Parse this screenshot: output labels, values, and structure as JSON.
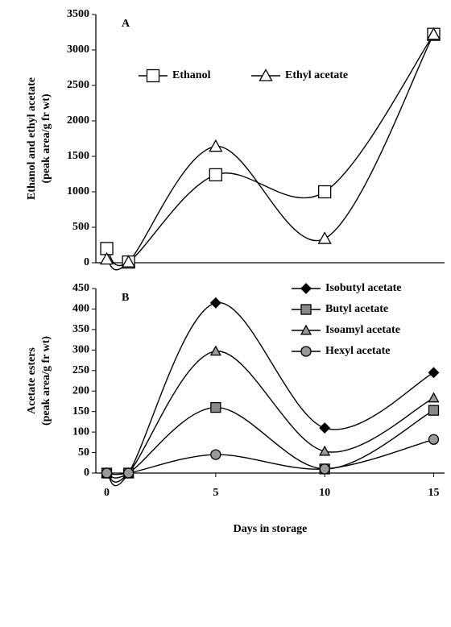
{
  "chart_data": [
    {
      "type": "line",
      "title": "A",
      "y_label": [
        "Ethanol and ethyl acetate",
        "(peak area/g fr wt)"
      ],
      "x": [
        0,
        1,
        5,
        10,
        15
      ],
      "xlim": [
        -0.5,
        15.5
      ],
      "ylim": [
        0,
        3500
      ],
      "yticks": [
        0,
        500,
        1000,
        1500,
        2000,
        2500,
        3000,
        3500
      ],
      "legend": "top",
      "series": [
        {
          "name": "Ethanol",
          "color": "#000000",
          "marker": "square",
          "fill": "#ffffff",
          "values": [
            200,
            10,
            1240,
            1000,
            3220
          ]
        },
        {
          "name": "Ethyl acetate",
          "color": "#000000",
          "marker": "triangle",
          "fill": "#ffffff",
          "values": [
            50,
            10,
            1640,
            340,
            3220
          ]
        }
      ]
    },
    {
      "type": "line",
      "title": "B",
      "y_label": [
        "Acetate esters",
        "(peak area/g fr wt)"
      ],
      "x_label": "Days in storage",
      "x": [
        0,
        1,
        5,
        10,
        15
      ],
      "xlim": [
        -0.5,
        15.5
      ],
      "xticks": [
        0,
        5,
        10,
        15
      ],
      "ylim": [
        0,
        450
      ],
      "yticks": [
        0,
        50,
        100,
        150,
        200,
        250,
        300,
        350,
        400,
        450
      ],
      "legend": "upper right",
      "series": [
        {
          "name": "Isobutyl acetate",
          "color": "#000000",
          "marker": "diamond",
          "fill": "#000000",
          "values": [
            0,
            0,
            415,
            110,
            245
          ]
        },
        {
          "name": "Butyl acetate",
          "color": "#000000",
          "marker": "square",
          "fill": "#888888",
          "values": [
            0,
            0,
            160,
            10,
            153
          ]
        },
        {
          "name": "Isoamyl acetate",
          "color": "#000000",
          "marker": "triangle",
          "fill": "#999999",
          "values": [
            0,
            0,
            297,
            53,
            183
          ]
        },
        {
          "name": "Hexyl acetate",
          "color": "#000000",
          "marker": "circle",
          "fill": "#999999",
          "values": [
            0,
            0,
            45,
            10,
            82
          ]
        }
      ]
    }
  ]
}
